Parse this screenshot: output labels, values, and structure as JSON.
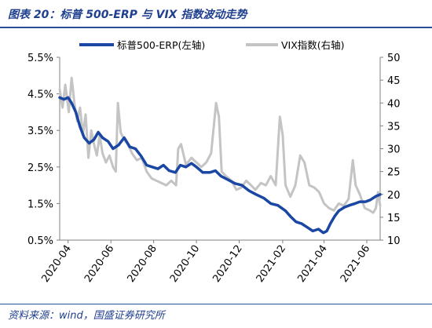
{
  "header": {
    "title": "图表 20：标普 500-ERP 与 VIX 指数波动走势"
  },
  "footer": {
    "source": "资料来源：wind，国盛证券研究所"
  },
  "chart_data": {
    "type": "line",
    "title": "图表 20：标普 500-ERP 与 VIX 指数波动走势",
    "xlabel": "",
    "ylabel": "",
    "x_ticks": [
      "2020-04",
      "2020-06",
      "2020-08",
      "2020-10",
      "2020-12",
      "2021-02",
      "2021-04",
      "2021-06"
    ],
    "x_range": [
      "2020-03-20",
      "2021-06-20"
    ],
    "y_left": {
      "ticks": [
        "0.5%",
        "1.5%",
        "2.5%",
        "3.5%",
        "4.5%",
        "5.5%"
      ],
      "range": [
        0.5,
        5.5
      ],
      "unit": "%"
    },
    "y_right": {
      "ticks": [
        "10",
        "15",
        "20",
        "25",
        "30",
        "35",
        "40",
        "45",
        "50"
      ],
      "range": [
        10,
        50
      ]
    },
    "legend": {
      "position": "top"
    },
    "grid": false,
    "colors": {
      "erp": "#1a47a3",
      "vix": "#c4c4c4",
      "axis": "#808080"
    },
    "series": [
      {
        "name": "标普500-ERP(左轴)",
        "axis": "left",
        "points": [
          [
            "2020-03-20",
            4.4
          ],
          [
            "2020-03-26",
            4.35
          ],
          [
            "2020-04-01",
            4.4
          ],
          [
            "2020-04-06",
            4.25
          ],
          [
            "2020-04-12",
            4.0
          ],
          [
            "2020-04-18",
            3.6
          ],
          [
            "2020-04-24",
            3.3
          ],
          [
            "2020-05-01",
            3.15
          ],
          [
            "2020-05-08",
            3.25
          ],
          [
            "2020-05-14",
            3.45
          ],
          [
            "2020-05-20",
            3.3
          ],
          [
            "2020-05-28",
            3.2
          ],
          [
            "2020-06-04",
            3.0
          ],
          [
            "2020-06-12",
            3.1
          ],
          [
            "2020-06-20",
            3.3
          ],
          [
            "2020-06-28",
            3.05
          ],
          [
            "2020-07-06",
            3.0
          ],
          [
            "2020-07-14",
            2.8
          ],
          [
            "2020-07-22",
            2.55
          ],
          [
            "2020-07-30",
            2.5
          ],
          [
            "2020-08-07",
            2.45
          ],
          [
            "2020-08-15",
            2.55
          ],
          [
            "2020-08-23",
            2.4
          ],
          [
            "2020-09-01",
            2.35
          ],
          [
            "2020-09-08",
            2.55
          ],
          [
            "2020-09-16",
            2.5
          ],
          [
            "2020-09-24",
            2.6
          ],
          [
            "2020-10-01",
            2.5
          ],
          [
            "2020-10-10",
            2.35
          ],
          [
            "2020-10-20",
            2.35
          ],
          [
            "2020-10-28",
            2.4
          ],
          [
            "2020-11-05",
            2.25
          ],
          [
            "2020-11-15",
            2.15
          ],
          [
            "2020-11-25",
            2.05
          ],
          [
            "2020-12-05",
            2.0
          ],
          [
            "2020-12-15",
            1.85
          ],
          [
            "2020-12-25",
            1.75
          ],
          [
            "2021-01-05",
            1.65
          ],
          [
            "2021-01-15",
            1.5
          ],
          [
            "2021-01-25",
            1.45
          ],
          [
            "2021-02-05",
            1.3
          ],
          [
            "2021-02-12",
            1.15
          ],
          [
            "2021-02-20",
            1.0
          ],
          [
            "2021-02-28",
            0.95
          ],
          [
            "2021-03-08",
            0.85
          ],
          [
            "2021-03-16",
            0.75
          ],
          [
            "2021-03-24",
            0.8
          ],
          [
            "2021-03-31",
            0.7
          ],
          [
            "2021-04-05",
            0.75
          ],
          [
            "2021-04-10",
            0.95
          ],
          [
            "2021-04-16",
            1.15
          ],
          [
            "2021-04-22",
            1.3
          ],
          [
            "2021-04-30",
            1.4
          ],
          [
            "2021-05-07",
            1.45
          ],
          [
            "2021-05-15",
            1.5
          ],
          [
            "2021-05-22",
            1.55
          ],
          [
            "2021-05-30",
            1.55
          ],
          [
            "2021-06-06",
            1.6
          ],
          [
            "2021-06-14",
            1.7
          ],
          [
            "2021-06-20",
            1.75
          ]
        ]
      },
      {
        "name": "VIX指数(右轴)",
        "axis": "right",
        "points": [
          [
            "2020-03-20",
            43.0
          ],
          [
            "2020-03-24",
            39.0
          ],
          [
            "2020-03-28",
            44.0
          ],
          [
            "2020-04-02",
            38.0
          ],
          [
            "2020-04-06",
            45.5
          ],
          [
            "2020-04-10",
            40.0
          ],
          [
            "2020-04-14",
            36.0
          ],
          [
            "2020-04-18",
            39.0
          ],
          [
            "2020-04-22",
            33.0
          ],
          [
            "2020-04-26",
            37.5
          ],
          [
            "2020-04-30",
            28.0
          ],
          [
            "2020-05-04",
            34.0
          ],
          [
            "2020-05-08",
            31.0
          ],
          [
            "2020-05-12",
            28.5
          ],
          [
            "2020-05-16",
            33.0
          ],
          [
            "2020-05-20",
            29.0
          ],
          [
            "2020-05-25",
            27.0
          ],
          [
            "2020-05-30",
            28.5
          ],
          [
            "2020-06-04",
            26.0
          ],
          [
            "2020-06-08",
            25.0
          ],
          [
            "2020-06-11",
            40.0
          ],
          [
            "2020-06-15",
            33.5
          ],
          [
            "2020-06-20",
            32.0
          ],
          [
            "2020-06-25",
            31.0
          ],
          [
            "2020-07-01",
            29.0
          ],
          [
            "2020-07-08",
            27.5
          ],
          [
            "2020-07-15",
            28.0
          ],
          [
            "2020-07-22",
            25.0
          ],
          [
            "2020-07-29",
            23.5
          ],
          [
            "2020-08-05",
            23.0
          ],
          [
            "2020-08-12",
            22.5
          ],
          [
            "2020-08-19",
            22.0
          ],
          [
            "2020-08-26",
            23.0
          ],
          [
            "2020-09-02",
            22.0
          ],
          [
            "2020-09-05",
            30.0
          ],
          [
            "2020-09-09",
            31.0
          ],
          [
            "2020-09-16",
            26.5
          ],
          [
            "2020-09-24",
            28.0
          ],
          [
            "2020-10-01",
            27.0
          ],
          [
            "2020-10-08",
            26.0
          ],
          [
            "2020-10-15",
            27.0
          ],
          [
            "2020-10-22",
            29.0
          ],
          [
            "2020-10-29",
            40.0
          ],
          [
            "2020-11-02",
            37.0
          ],
          [
            "2020-11-06",
            25.0
          ],
          [
            "2020-11-12",
            24.0
          ],
          [
            "2020-11-20",
            23.0
          ],
          [
            "2020-11-27",
            21.0
          ],
          [
            "2020-12-04",
            21.5
          ],
          [
            "2020-12-11",
            23.0
          ],
          [
            "2020-12-18",
            22.0
          ],
          [
            "2020-12-24",
            21.0
          ],
          [
            "2021-01-01",
            22.5
          ],
          [
            "2021-01-08",
            22.0
          ],
          [
            "2021-01-15",
            24.0
          ],
          [
            "2021-01-22",
            22.0
          ],
          [
            "2021-01-28",
            37.0
          ],
          [
            "2021-02-01",
            33.0
          ],
          [
            "2021-02-05",
            22.0
          ],
          [
            "2021-02-12",
            19.5
          ],
          [
            "2021-02-19",
            22.0
          ],
          [
            "2021-02-26",
            28.5
          ],
          [
            "2021-03-04",
            27.0
          ],
          [
            "2021-03-11",
            22.0
          ],
          [
            "2021-03-18",
            21.5
          ],
          [
            "2021-03-25",
            20.5
          ],
          [
            "2021-04-01",
            18.0
          ],
          [
            "2021-04-08",
            17.0
          ],
          [
            "2021-04-15",
            16.5
          ],
          [
            "2021-04-22",
            18.0
          ],
          [
            "2021-04-29",
            17.5
          ],
          [
            "2021-05-06",
            19.0
          ],
          [
            "2021-05-12",
            27.5
          ],
          [
            "2021-05-16",
            22.0
          ],
          [
            "2021-05-22",
            20.0
          ],
          [
            "2021-05-29",
            17.0
          ],
          [
            "2021-06-05",
            16.5
          ],
          [
            "2021-06-10",
            16.0
          ],
          [
            "2021-06-14",
            17.0
          ],
          [
            "2021-06-17",
            20.5
          ],
          [
            "2021-06-20",
            17.5
          ]
        ]
      }
    ]
  }
}
